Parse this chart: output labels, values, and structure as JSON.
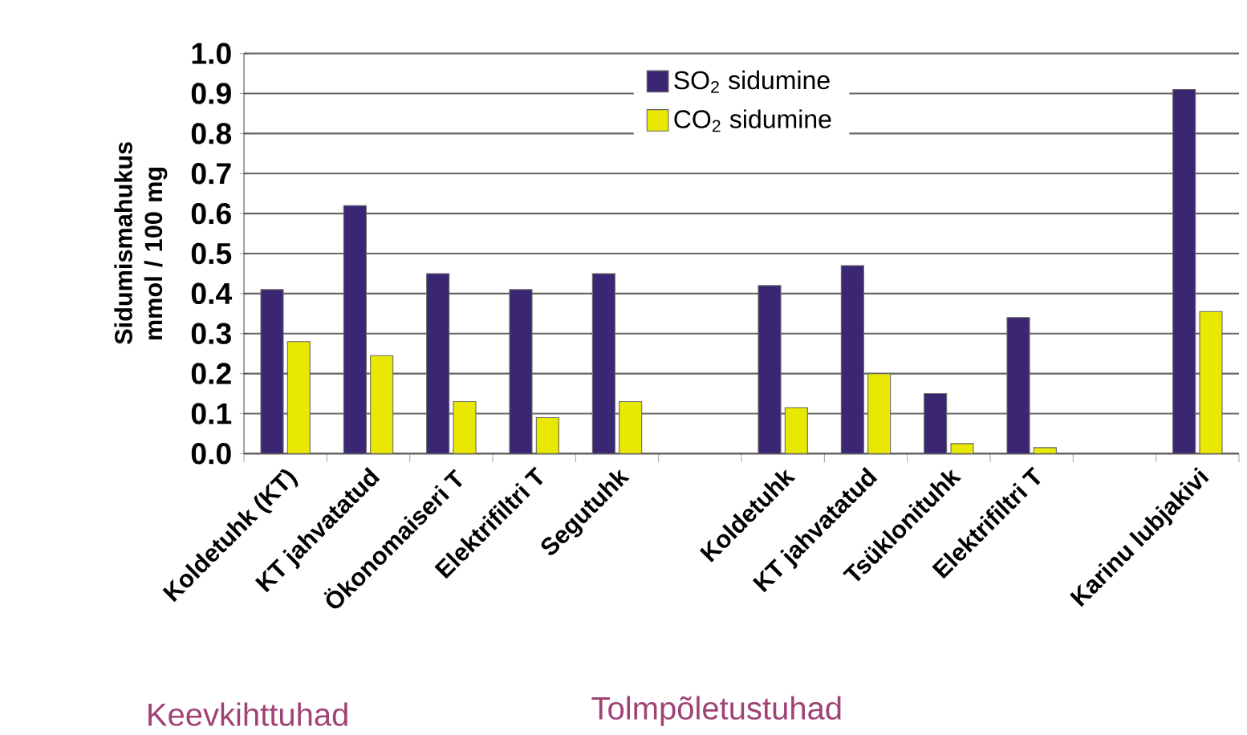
{
  "chart_data": {
    "type": "bar",
    "ylabel": "Sidumismahukus mmol / 100 mg",
    "categories": [
      "Koldetuhk (KT)",
      "KT jahvatatud",
      "Ökonomaiseri T",
      "Elektrifiltri T",
      "Segutuhk",
      null,
      "Koldetuhk",
      "KT jahvatatud",
      "Tsüklonituhk",
      "Elektrifiltri T",
      null,
      "Karinu lubjakivi"
    ],
    "series": [
      {
        "name": "SO$_{2}$ sidumine",
        "color": "#3b2673",
        "values": [
          0.41,
          0.62,
          0.45,
          0.41,
          0.45,
          null,
          0.42,
          0.47,
          0.15,
          0.34,
          null,
          0.91
        ]
      },
      {
        "name": "CO$_{2}$ sidumine",
        "color": "#e8e800",
        "values": [
          0.28,
          0.245,
          0.13,
          0.09,
          0.13,
          null,
          0.115,
          0.2,
          0.025,
          0.015,
          null,
          0.355
        ]
      }
    ],
    "ylim": [
      0,
      1
    ],
    "yticks": [
      {
        "value": 0,
        "label": "0.0"
      },
      {
        "value": 0.1,
        "label": "0.1"
      },
      {
        "value": 0.2,
        "label": "0.2"
      },
      {
        "value": 0.3,
        "label": "0.3"
      },
      {
        "value": 0.4,
        "label": "0.4"
      },
      {
        "value": 0.5,
        "label": "0.5"
      },
      {
        "value": 0.6,
        "label": "0.6"
      },
      {
        "value": 0.7,
        "label": "0.7"
      },
      {
        "value": 0.8,
        "label": "0.8"
      },
      {
        "value": 0.9,
        "label": "0.9"
      },
      {
        "value": 1,
        "label": "1.0"
      }
    ],
    "grid": "y",
    "legend": "top",
    "annotations": [
      "Keevkihttuhad",
      "Tolmpõletustuhad"
    ]
  }
}
